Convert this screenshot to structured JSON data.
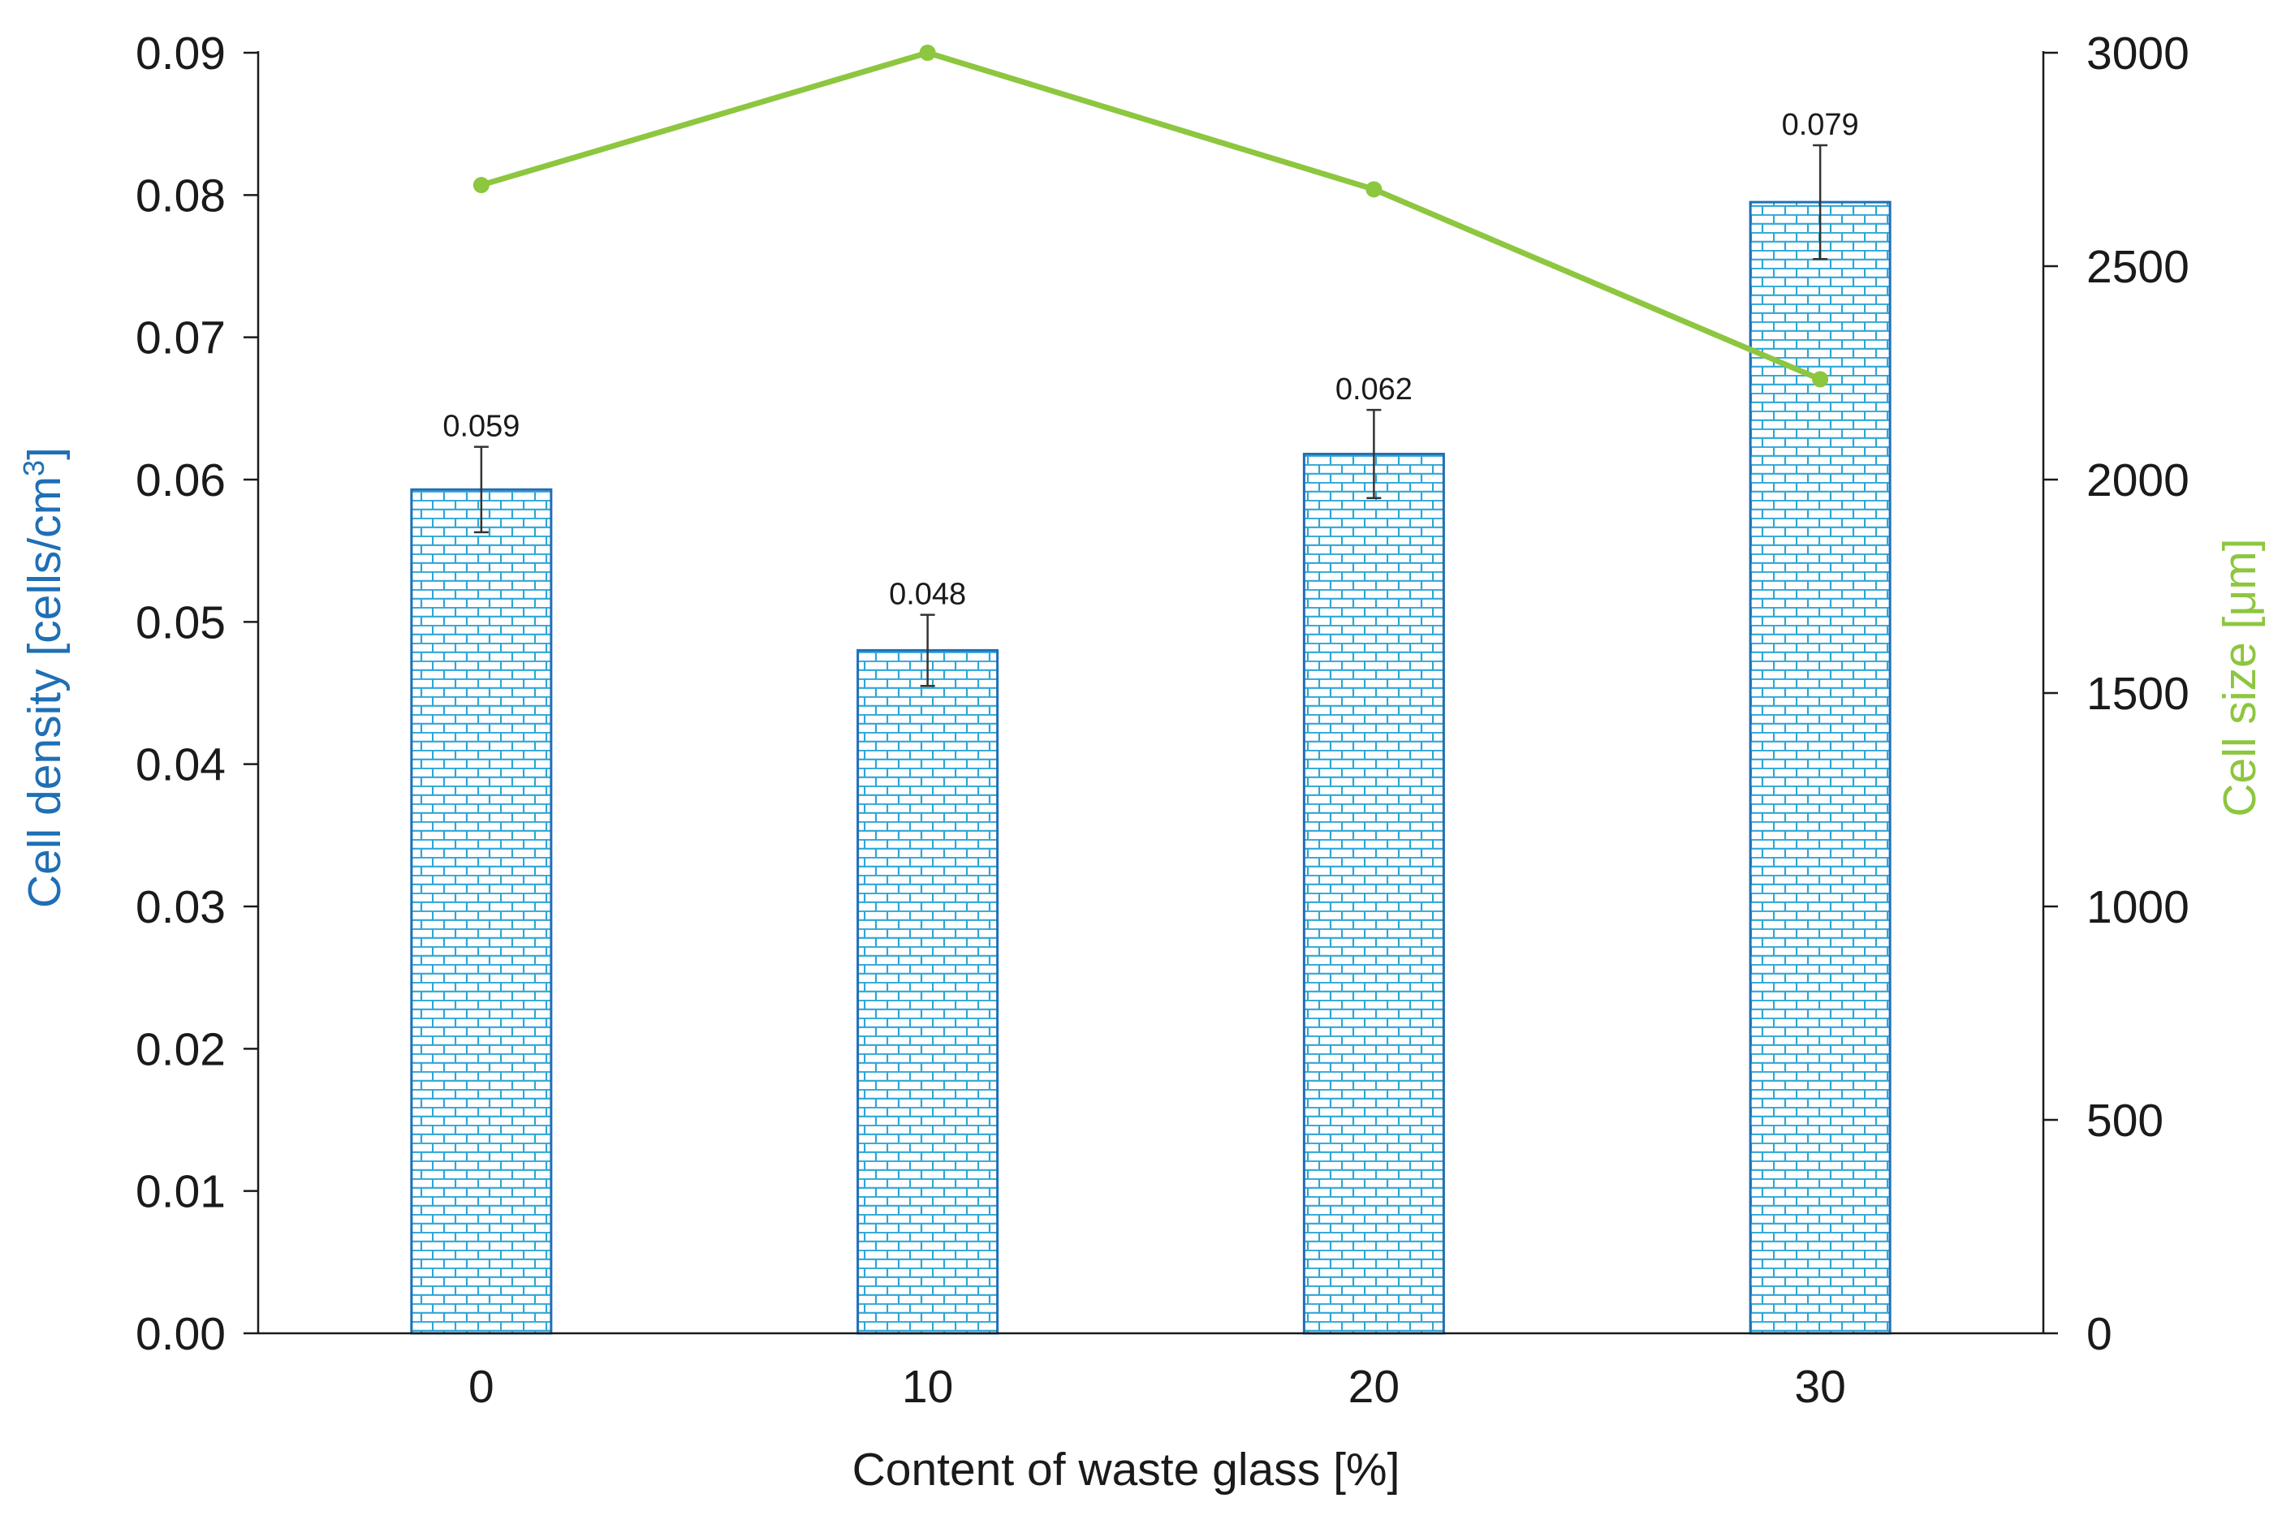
{
  "chart_data": {
    "type": "bar",
    "categories": [
      "0",
      "10",
      "20",
      "30"
    ],
    "xlabel": "Content of waste glass [%]",
    "ylabel_main": "Cell density [cells/cm",
    "ylabel_sup": "3",
    "ylabel_tail": "]",
    "y2label": "Cell size [μm]",
    "ylim": [
      0,
      0.09
    ],
    "y_ticks": [
      "0.00",
      "0.01",
      "0.02",
      "0.03",
      "0.04",
      "0.05",
      "0.06",
      "0.07",
      "0.08",
      "0.09"
    ],
    "y2lim": [
      0,
      3000
    ],
    "y2_ticks": [
      "0",
      "500",
      "1000",
      "1500",
      "2000",
      "2500",
      "3000"
    ],
    "grid": false,
    "series": [
      {
        "name": "Cell density",
        "kind": "bar",
        "axis": "left",
        "values": [
          0.0593,
          0.048,
          0.0618,
          0.0795
        ],
        "errors": [
          0.003,
          0.0025,
          0.0031,
          0.004
        ],
        "labels": [
          "0.059",
          "0.048",
          "0.062",
          "0.079"
        ]
      },
      {
        "name": "Cell size",
        "kind": "line",
        "axis": "right",
        "values": [
          2690,
          3000,
          2680,
          2235
        ]
      }
    ],
    "colors": {
      "bar_fill": "#ffffff",
      "bar_pattern": "#2ea6d8",
      "bar_edge": "#1f6fb5",
      "line": "#8dc63f",
      "left_axis_title": "#1f6fb5",
      "right_axis_title": "#8dc63f",
      "axis": "#1a1a1a",
      "error_bar": "#333333"
    }
  }
}
